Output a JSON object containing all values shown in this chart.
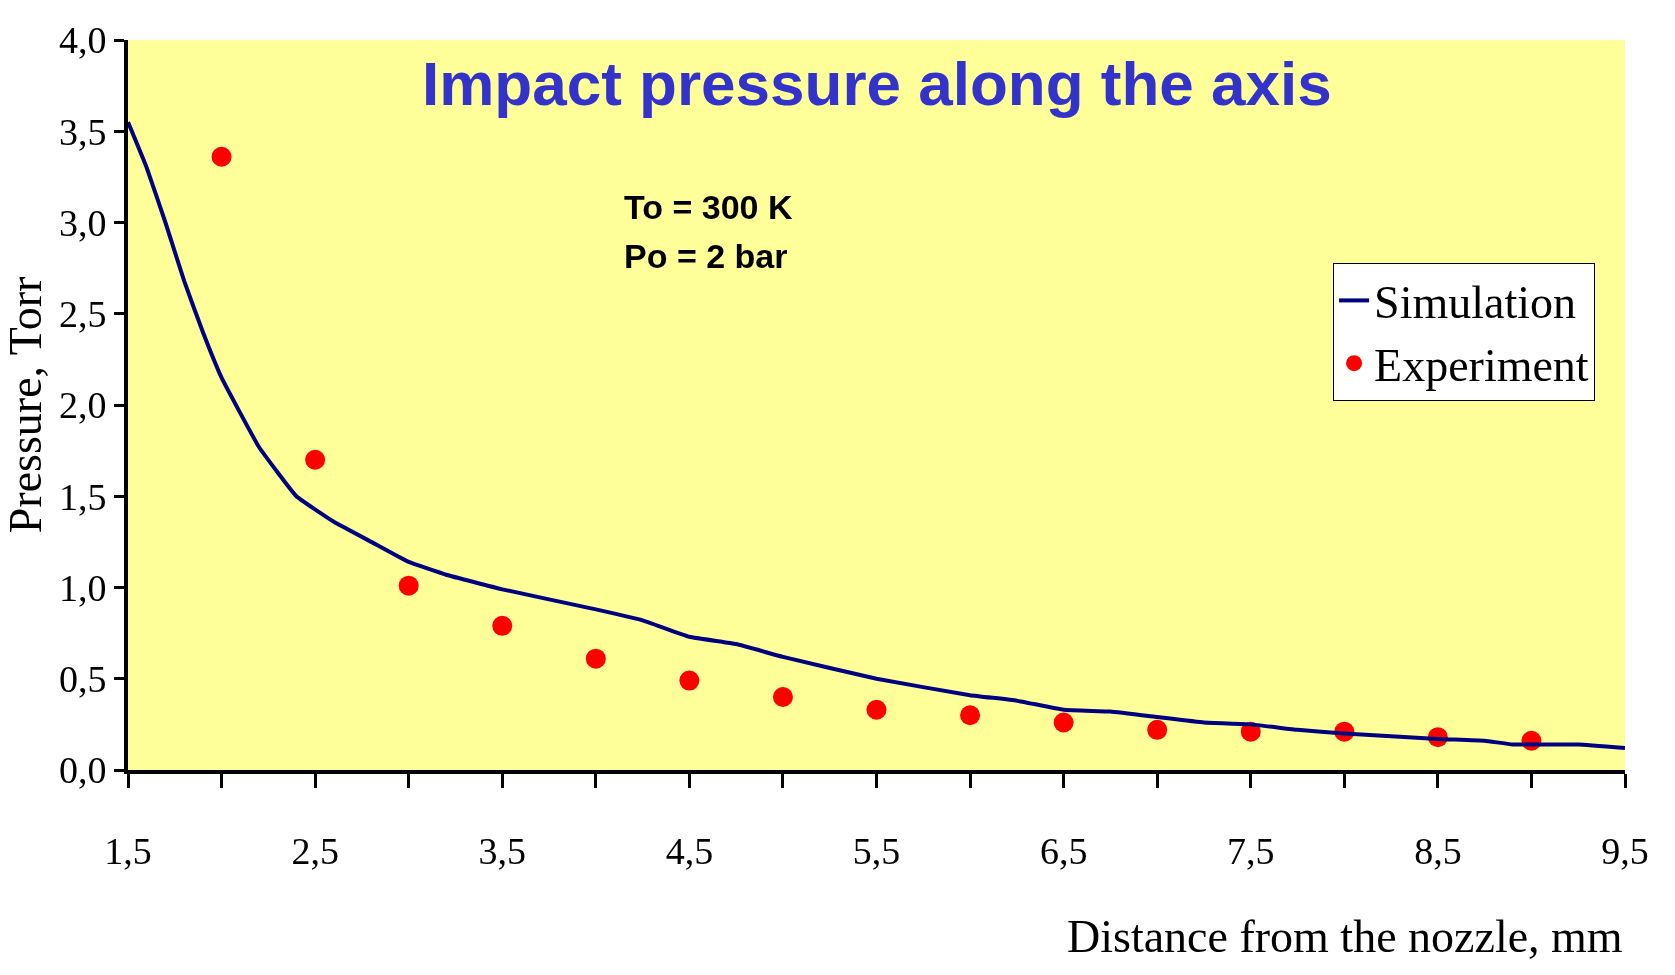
{
  "chart_data": {
    "type": "line",
    "title": "Impact pressure along the axis",
    "xlabel": "Distance from the nozzle, mm",
    "ylabel": "Pressure, Torr",
    "annotations": [
      "To = 300 K",
      "Po = 2 bar"
    ],
    "series": [
      {
        "name": "Simulation",
        "color": "#000080",
        "marker": "none",
        "x": [
          1.5,
          1.6,
          1.7,
          1.8,
          1.9,
          2.0,
          2.2,
          2.4,
          2.6,
          2.8,
          3.0,
          3.2,
          3.5,
          4.0,
          4.25,
          4.5,
          4.75,
          5.0,
          5.5,
          6.0,
          6.25,
          6.5,
          6.75,
          7.0,
          7.25,
          7.5,
          7.75,
          8.0,
          8.5,
          8.75,
          8.9,
          9.25,
          9.5
        ],
        "values": [
          3.55,
          3.3,
          3.0,
          2.68,
          2.4,
          2.15,
          1.77,
          1.5,
          1.36,
          1.25,
          1.14,
          1.07,
          0.99,
          0.88,
          0.82,
          0.73,
          0.69,
          0.62,
          0.5,
          0.41,
          0.38,
          0.33,
          0.32,
          0.29,
          0.26,
          0.25,
          0.22,
          0.2,
          0.17,
          0.16,
          0.14,
          0.14,
          0.12
        ]
      },
      {
        "name": "Experiment",
        "type": "scatter",
        "color": "#ff0000",
        "marker": "circle",
        "x": [
          2,
          2.5,
          3,
          3.5,
          4,
          4.5,
          5,
          5.5,
          6,
          6.5,
          7,
          7.5,
          8,
          8.5,
          9
        ],
        "values": [
          3.36,
          1.7,
          1.01,
          0.79,
          0.61,
          0.49,
          0.4,
          0.33,
          0.3,
          0.26,
          0.22,
          0.21,
          0.21,
          0.18,
          0.16
        ]
      }
    ],
    "xlim": [
      1.5,
      9.5
    ],
    "ylim": [
      0,
      4
    ],
    "xticks": [
      {
        "value": 1.5,
        "label": "1,5"
      },
      {
        "value": 2,
        "label": null
      },
      {
        "value": 2.5,
        "label": "2,5"
      },
      {
        "value": 3,
        "label": null
      },
      {
        "value": 3.5,
        "label": "3,5"
      },
      {
        "value": 4,
        "label": null
      },
      {
        "value": 4.5,
        "label": "4,5"
      },
      {
        "value": 5,
        "label": null
      },
      {
        "value": 5.5,
        "label": "5,5"
      },
      {
        "value": 6,
        "label": null
      },
      {
        "value": 6.5,
        "label": "6,5"
      },
      {
        "value": 7,
        "label": null
      },
      {
        "value": 7.5,
        "label": "7,5"
      },
      {
        "value": 8,
        "label": null
      },
      {
        "value": 8.5,
        "label": "8,5"
      },
      {
        "value": 9,
        "label": null
      },
      {
        "value": 9.5,
        "label": "9,5"
      }
    ],
    "yticks": [
      {
        "value": 0,
        "label": "0,0"
      },
      {
        "value": 0.5,
        "label": "0,5"
      },
      {
        "value": 1,
        "label": "1,0"
      },
      {
        "value": 1.5,
        "label": "1,5"
      },
      {
        "value": 2,
        "label": "2,0"
      },
      {
        "value": 2.5,
        "label": "2,5"
      },
      {
        "value": 3,
        "label": "3,0"
      },
      {
        "value": 3.5,
        "label": "3,5"
      },
      {
        "value": 4,
        "label": "4,0"
      }
    ],
    "grid": false,
    "legend": "right",
    "line_style": "solid"
  }
}
